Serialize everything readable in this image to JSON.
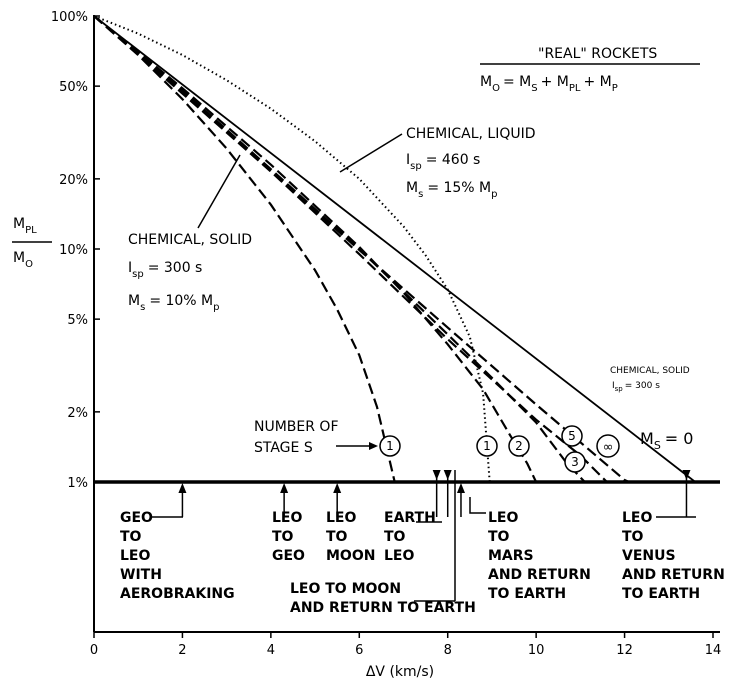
{
  "chart_data": {
    "type": "line",
    "xlabel": "ΔV (km/s)",
    "xlim": [
      0,
      14
    ],
    "x_ticks": [
      "0",
      "2",
      "4",
      "6",
      "8",
      "10",
      "12",
      "14"
    ],
    "ylim_percent": [
      1,
      100
    ],
    "y_scale": "log",
    "y_ticks": [
      "1%",
      "2%",
      "5%",
      "10%",
      "20%",
      "50%",
      "100%"
    ],
    "ylabel": {
      "num": "M",
      "num_sub": "PL",
      "den": "M",
      "den_sub": "O"
    },
    "legend": {
      "title": "\"REAL\" ROCKETS",
      "formula": {
        "M": "M",
        "O": "O",
        "eq": "= M",
        "S": "S",
        "plus1": "+ M",
        "PL": "PL",
        "plus2": "+ M",
        "P": "P"
      }
    },
    "annotations": {
      "liquid": {
        "line1": "CHEMICAL, LIQUID",
        "isp_l": "I",
        "isp_sub": "sp",
        "isp_v": "= 460 s",
        "ms_l": "M",
        "ms_sub": "s",
        "ms_v": "= 15% M",
        "ms_p": "p"
      },
      "solid": {
        "line1": "CHEMICAL, SOLID",
        "isp_l": "I",
        "isp_sub": "sp",
        "isp_v": "= 300 s",
        "ms_l": "M",
        "ms_sub": "s",
        "ms_v": "= 10% M",
        "ms_p": "p"
      },
      "solid_small": {
        "line1": "CHEMICAL, SOLID",
        "line2_l": "I",
        "line2_sub": "sp",
        "line2_v": "= 300 s"
      },
      "ms_zero": {
        "M": "M",
        "S": "S",
        "v": "= 0"
      },
      "stages_title": [
        "NUMBER OF",
        "STAGE S"
      ]
    },
    "stage_labels": [
      "1",
      "1",
      "2",
      "5",
      "∞",
      "3"
    ],
    "series": [
      {
        "style": "solid",
        "x": [
          0,
          13.6
        ],
        "y": [
          100,
          1
        ]
      },
      {
        "style": "dotted",
        "x": [
          0,
          1,
          2,
          3,
          4,
          5,
          6,
          7,
          7.5,
          8,
          8.5,
          8.8,
          8.95
        ],
        "y": [
          100,
          84,
          68,
          53,
          40,
          29,
          20,
          12.5,
          9.4,
          6.7,
          4.2,
          2.4,
          1.0
        ]
      },
      {
        "style": "dashed",
        "x": [
          0,
          1,
          2,
          3,
          4,
          5,
          5.5,
          6,
          6.4,
          6.8
        ],
        "y": [
          100,
          68,
          44,
          27,
          15.5,
          8.1,
          5.5,
          3.5,
          2.1,
          1.0
        ]
      },
      {
        "style": "dashed",
        "x": [
          0,
          2,
          4,
          6,
          7,
          8,
          8.8,
          9.4,
          9.8,
          10.0
        ],
        "y": [
          100,
          49,
          23,
          10.2,
          6.5,
          3.9,
          2.5,
          1.6,
          1.2,
          1.0
        ]
      },
      {
        "style": "dashed",
        "x": [
          0,
          2,
          4,
          6,
          8,
          9,
          10,
          10.7,
          11.1
        ],
        "y": [
          100,
          48,
          22,
          10,
          4.3,
          2.8,
          1.8,
          1.2,
          1.0
        ]
      },
      {
        "style": "dashed",
        "x": [
          0,
          2,
          4,
          6,
          8,
          10,
          11,
          11.6
        ],
        "y": [
          100,
          47,
          21.5,
          9.5,
          4.1,
          1.85,
          1.3,
          1.0
        ]
      },
      {
        "style": "dashed",
        "x": [
          0,
          2,
          4,
          6,
          8,
          10,
          12,
          12.1
        ],
        "y": [
          100,
          46.5,
          21.5,
          9.9,
          4.6,
          2.15,
          1.02,
          1.0
        ]
      }
    ],
    "mission_markers": [
      {
        "dv": 2.0,
        "lines": [
          "GEO",
          "TO",
          "LEO",
          "WITH",
          "AEROBRAKING"
        ]
      },
      {
        "dv": 4.3,
        "lines": [
          "LEO",
          "TO",
          "GEO"
        ]
      },
      {
        "dv": 5.5,
        "lines": [
          "LEO",
          "TO",
          "MOON"
        ]
      },
      {
        "dv": 7.75,
        "lines": [
          "EARTH",
          "TO",
          "LEO"
        ]
      },
      {
        "dv": 8.0,
        "lines": [
          "LEO TO MOON",
          "AND RETURN TO EARTH"
        ]
      },
      {
        "dv": 8.3,
        "lines": [
          "LEO",
          "TO",
          "MARS",
          "AND RETURN",
          "TO EARTH"
        ]
      },
      {
        "dv": 13.4,
        "lines": [
          "LEO",
          "TO",
          "VENUS",
          "AND RETURN",
          "TO EARTH"
        ]
      }
    ]
  }
}
